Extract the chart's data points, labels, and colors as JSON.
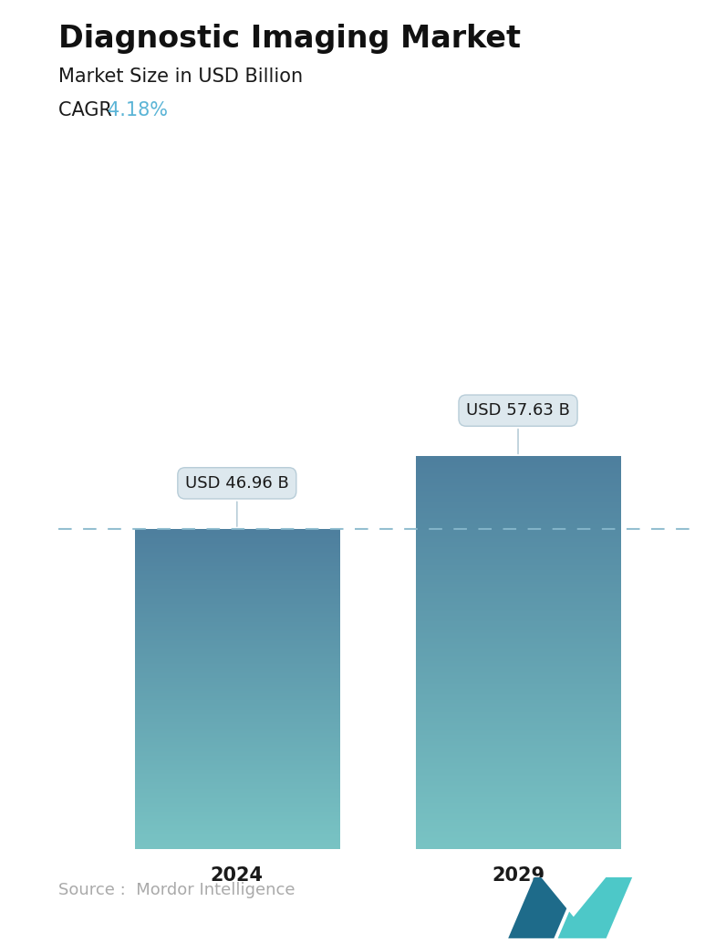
{
  "title": "Diagnostic Imaging Market",
  "subtitle": "Market Size in USD Billion",
  "cagr_label": "CAGR ",
  "cagr_value": "4.18%",
  "cagr_color": "#5ab4d6",
  "categories": [
    "2024",
    "2029"
  ],
  "values": [
    46.96,
    57.63
  ],
  "value_labels": [
    "USD 46.96 B",
    "USD 57.63 B"
  ],
  "bar_top_color": "#4e7f9e",
  "bar_bottom_color": "#79c4c4",
  "dashed_line_color": "#88b8cc",
  "source_text": "Source :  Mordor Intelligence",
  "source_color": "#aaaaaa",
  "background_color": "#ffffff",
  "title_fontsize": 24,
  "subtitle_fontsize": 15,
  "cagr_fontsize": 15,
  "tick_fontsize": 15,
  "label_fontsize": 13,
  "source_fontsize": 13,
  "ylim": [
    0,
    72
  ],
  "positions": [
    0.28,
    0.72
  ],
  "bar_width": 0.32
}
